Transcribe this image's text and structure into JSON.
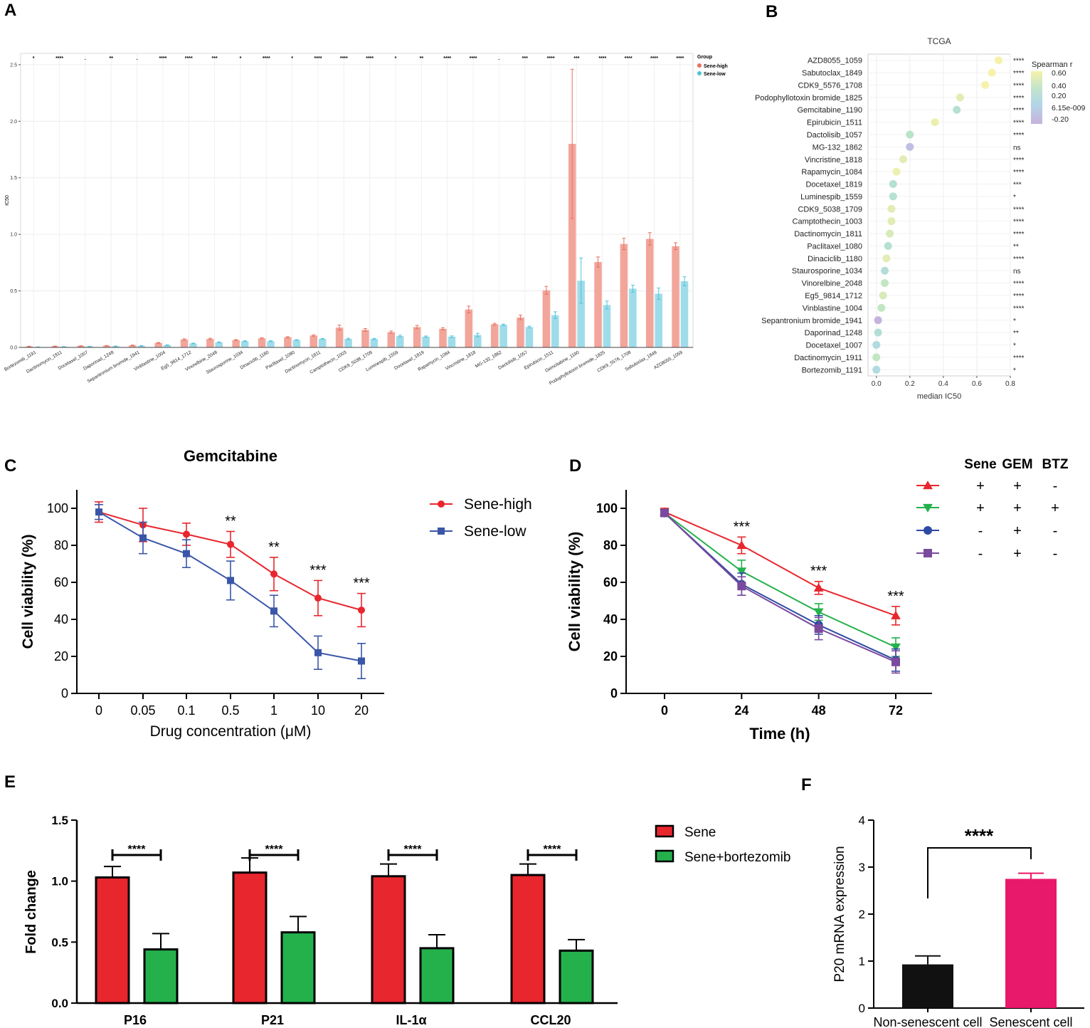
{
  "panel_labels": [
    "A",
    "B",
    "C",
    "D",
    "E",
    "F"
  ],
  "colors": {
    "sene_high_pastel": "#f2a59a",
    "sene_high_edge": "#e8705f",
    "sene_low_pastel": "#9fdcea",
    "sene_low_edge": "#52c3d8",
    "red": "#e8262d",
    "blue": "#3a56a8",
    "green": "#24b14c",
    "purple": "#7a4a9e",
    "navy": "#2d4aa3",
    "black": "#111111",
    "pink": "#e8186a"
  },
  "chart_data": [
    {
      "id": "A",
      "type": "bar",
      "title": "",
      "ylabel": "IC50",
      "xlabel": "",
      "ylim": [
        0,
        2.6
      ],
      "yticks": [
        0.0,
        0.5,
        1.0,
        1.5,
        2.0,
        2.5
      ],
      "ytick_labels": [
        "0.0",
        "0.5",
        "1.0",
        "1.5",
        "2.0",
        "2.5"
      ],
      "grid": true,
      "legend": {
        "title": "Group",
        "entries": [
          "Sene-high",
          "Sene-low"
        ],
        "placement": "right"
      },
      "categories": [
        "Bortezomib_1191",
        "Dactinomycin_1911",
        "Docetaxel_1007",
        "Daporinad_1248",
        "Sepantronium bromide_1941",
        "Vinblastine_1004",
        "Eg5_9814_1712",
        "Vinorelbine_2048",
        "Staurosporine_1034",
        "Dinaciclib_1180",
        "Paclitaxel_1080",
        "Dactinomycin_1811",
        "Camptothecin_1003",
        "CDK9_5038_1709",
        "Luminespib_1559",
        "Docetaxel_1819",
        "Rapamycin_1084",
        "Vincristine_1818",
        "MG-132_1862",
        "Dactolisib_1057",
        "Epirubicin_1511",
        "Gemcitabine_1190",
        "Podophyllotoxin bromide_1825",
        "CDK9_5576_1708",
        "Sabutoclax_1849",
        "AZD8055_1059"
      ],
      "series": [
        {
          "name": "Sene-high",
          "values": [
            0.008,
            0.01,
            0.013,
            0.015,
            0.018,
            0.04,
            0.07,
            0.075,
            0.065,
            0.08,
            0.09,
            0.105,
            0.175,
            0.155,
            0.135,
            0.18,
            0.165,
            0.335,
            0.205,
            0.265,
            0.505,
            1.8,
            0.755,
            0.915,
            0.96,
            0.895
          ],
          "errors": [
            0.002,
            0.002,
            0.002,
            0.002,
            0.003,
            0.004,
            0.006,
            0.006,
            0.005,
            0.005,
            0.005,
            0.006,
            0.022,
            0.012,
            0.01,
            0.015,
            0.01,
            0.03,
            0.008,
            0.02,
            0.035,
            0.66,
            0.045,
            0.05,
            0.055,
            0.03
          ]
        },
        {
          "name": "Sene-low",
          "values": [
            0.004,
            0.006,
            0.008,
            0.01,
            0.014,
            0.02,
            0.035,
            0.045,
            0.055,
            0.055,
            0.065,
            0.075,
            0.075,
            0.075,
            0.1,
            0.095,
            0.095,
            0.11,
            0.2,
            0.18,
            0.285,
            0.59,
            0.375,
            0.52,
            0.475,
            0.585
          ],
          "errors": [
            0.001,
            0.001,
            0.001,
            0.002,
            0.002,
            0.003,
            0.003,
            0.004,
            0.004,
            0.004,
            0.004,
            0.004,
            0.006,
            0.005,
            0.008,
            0.006,
            0.007,
            0.015,
            0.006,
            0.008,
            0.03,
            0.2,
            0.035,
            0.03,
            0.05,
            0.04
          ]
        }
      ],
      "significance": [
        "*",
        "****",
        ".",
        "**",
        ".",
        "****",
        "****",
        "***",
        "*",
        "****",
        "*",
        "****",
        "****",
        "****",
        "*",
        "**",
        "****",
        "****",
        ".",
        "***",
        "****",
        "***",
        "****",
        "****",
        "****",
        "****"
      ]
    },
    {
      "id": "B",
      "type": "scatter",
      "title": "TCGA",
      "xlabel": "median IC50",
      "ylabel": "",
      "xlim": [
        -0.05,
        0.8
      ],
      "xticks": [
        0.0,
        0.2,
        0.4,
        0.6,
        0.8
      ],
      "xtick_labels": [
        "0.0",
        "0.2",
        "0.4",
        "0.6",
        "0.8"
      ],
      "grid": true,
      "legend": {
        "title": "Spearman r",
        "entries": [
          "0.60",
          "0.40",
          "0.20",
          "6.15e-009",
          "-0.20"
        ],
        "placement": "right"
      },
      "categories": [
        "AZD8055_1059",
        "Sabutoclax_1849",
        "CDK9_5576_1708",
        "Podophyllotoxin bromide_1825",
        "Gemcitabine_1190",
        "Epirubicin_1511",
        "Dactolisib_1057",
        "MG-132_1862",
        "Vincristine_1818",
        "Rapamycin_1084",
        "Docetaxel_1819",
        "Luminespib_1559",
        "CDK9_5038_1709",
        "Camptothecin_1003",
        "Dactinomycin_1811",
        "Paclitaxel_1080",
        "Dinaciclib_1180",
        "Staurosporine_1034",
        "Vinorelbine_2048",
        "Eg5_9814_1712",
        "Vinblastine_1004",
        "Sepantronium bromide_1941",
        "Daporinad_1248",
        "Docetaxel_1007",
        "Dactinomycin_1911",
        "Bortezomib_1191"
      ],
      "x": [
        0.73,
        0.69,
        0.65,
        0.5,
        0.48,
        0.35,
        0.2,
        0.2,
        0.16,
        0.12,
        0.1,
        0.1,
        0.09,
        0.09,
        0.08,
        0.07,
        0.06,
        0.05,
        0.05,
        0.04,
        0.03,
        0.01,
        0.01,
        0.0,
        0.0,
        0.0
      ],
      "spearman_r": [
        0.6,
        0.6,
        0.6,
        0.5,
        0.25,
        0.55,
        0.3,
        -0.1,
        0.5,
        0.55,
        0.25,
        0.25,
        0.5,
        0.5,
        0.45,
        0.25,
        0.5,
        0.2,
        0.35,
        0.45,
        0.35,
        -0.2,
        0.2,
        0.15,
        0.35,
        0.15
      ],
      "significance": [
        "****",
        "****",
        "****",
        "****",
        "****",
        "****",
        "****",
        "ns",
        "****",
        "****",
        "***",
        "*",
        "****",
        "****",
        "****",
        "**",
        "****",
        "ns",
        "****",
        "****",
        "****",
        "*",
        "**",
        "*",
        "****",
        "*"
      ]
    },
    {
      "id": "C",
      "type": "line",
      "title": "Gemcitabine",
      "xlabel": "Drug concentration (μM)",
      "ylabel": "Cell viability (%)",
      "categories": [
        "0",
        "0.05",
        "0.1",
        "0.5",
        "1",
        "10",
        "20"
      ],
      "ylim": [
        0,
        110
      ],
      "yticks": [
        0,
        20,
        40,
        60,
        80,
        100
      ],
      "legend": {
        "entries": [
          "Sene-high",
          "Sene-low"
        ],
        "placement": "top-right"
      },
      "series": [
        {
          "name": "Sene-high",
          "values": [
            98,
            91,
            86,
            80.5,
            64.5,
            51.5,
            45
          ],
          "errors": [
            5.5,
            9,
            6,
            7,
            9,
            9.5,
            9
          ]
        },
        {
          "name": "Sene-low",
          "values": [
            98,
            84,
            75.5,
            61,
            44.5,
            22,
            17.5
          ],
          "errors": [
            4,
            8.5,
            7.5,
            10.5,
            8.5,
            9,
            9.5
          ]
        }
      ],
      "annotations": [
        "",
        "",
        "",
        "**",
        "**",
        "***",
        "***"
      ]
    },
    {
      "id": "D",
      "type": "line",
      "title": "",
      "xlabel": "Time (h)",
      "ylabel": "Cell viability (%)",
      "x": [
        0,
        24,
        48,
        72
      ],
      "xtick_labels": [
        "0",
        "24",
        "48",
        "72"
      ],
      "ylim": [
        0,
        110
      ],
      "yticks": [
        0,
        20,
        40,
        60,
        80,
        100
      ],
      "legend": {
        "headers": [
          "Sene",
          "GEM",
          "BTZ"
        ],
        "rows": [
          [
            "+",
            "+",
            "-"
          ],
          [
            "+",
            "+",
            "+"
          ],
          [
            "-",
            "+",
            "-"
          ],
          [
            "-",
            "+",
            "-"
          ]
        ],
        "placement": "top-right"
      },
      "series": [
        {
          "name": "Sene+GEM",
          "marker": "triangle-up",
          "values": [
            98,
            80,
            57,
            42
          ],
          "errors": [
            2,
            4.5,
            3.5,
            5
          ]
        },
        {
          "name": "Sene+GEM+BTZ",
          "marker": "triangle-down",
          "values": [
            97.5,
            66,
            44,
            25
          ],
          "errors": [
            2,
            6,
            4.5,
            5
          ]
        },
        {
          "name": "GEM",
          "marker": "circle",
          "values": [
            97.5,
            59,
            37,
            18
          ],
          "errors": [
            2,
            6,
            5,
            6
          ]
        },
        {
          "name": "GEM (2)",
          "marker": "square",
          "values": [
            97.5,
            58,
            35,
            17
          ],
          "errors": [
            2,
            5,
            6,
            6
          ]
        }
      ],
      "annotations": [
        "",
        "***",
        "***",
        "***"
      ]
    },
    {
      "id": "E",
      "type": "bar",
      "title": "",
      "xlabel": "",
      "ylabel": "Fold change",
      "categories": [
        "P16",
        "P21",
        "IL-1α",
        "CCL20"
      ],
      "ylim": [
        0,
        1.5
      ],
      "yticks": [
        0.0,
        0.5,
        1.0,
        1.5
      ],
      "ytick_labels": [
        "0.0",
        "0.5",
        "1.0",
        "1.5"
      ],
      "legend": {
        "entries": [
          "Sene",
          "Sene+bortezomib"
        ],
        "placement": "top-right"
      },
      "series": [
        {
          "name": "Sene",
          "values": [
            1.03,
            1.07,
            1.04,
            1.05
          ],
          "errors": [
            0.09,
            0.12,
            0.1,
            0.09
          ]
        },
        {
          "name": "Sene+bortezomib",
          "values": [
            0.44,
            0.58,
            0.45,
            0.43
          ],
          "errors": [
            0.13,
            0.13,
            0.11,
            0.09
          ]
        }
      ],
      "annotations": [
        "****",
        "****",
        "****",
        "****"
      ]
    },
    {
      "id": "F",
      "type": "bar",
      "title": "",
      "xlabel": "",
      "ylabel": "P20 mRNA expression",
      "categories": [
        "Non-senescent cell",
        "Senescent cell"
      ],
      "ylim": [
        0,
        4
      ],
      "yticks": [
        0,
        1,
        2,
        3,
        4
      ],
      "values": [
        0.93,
        2.75
      ],
      "errors": [
        0.18,
        0.12
      ],
      "annotation": "****"
    }
  ]
}
